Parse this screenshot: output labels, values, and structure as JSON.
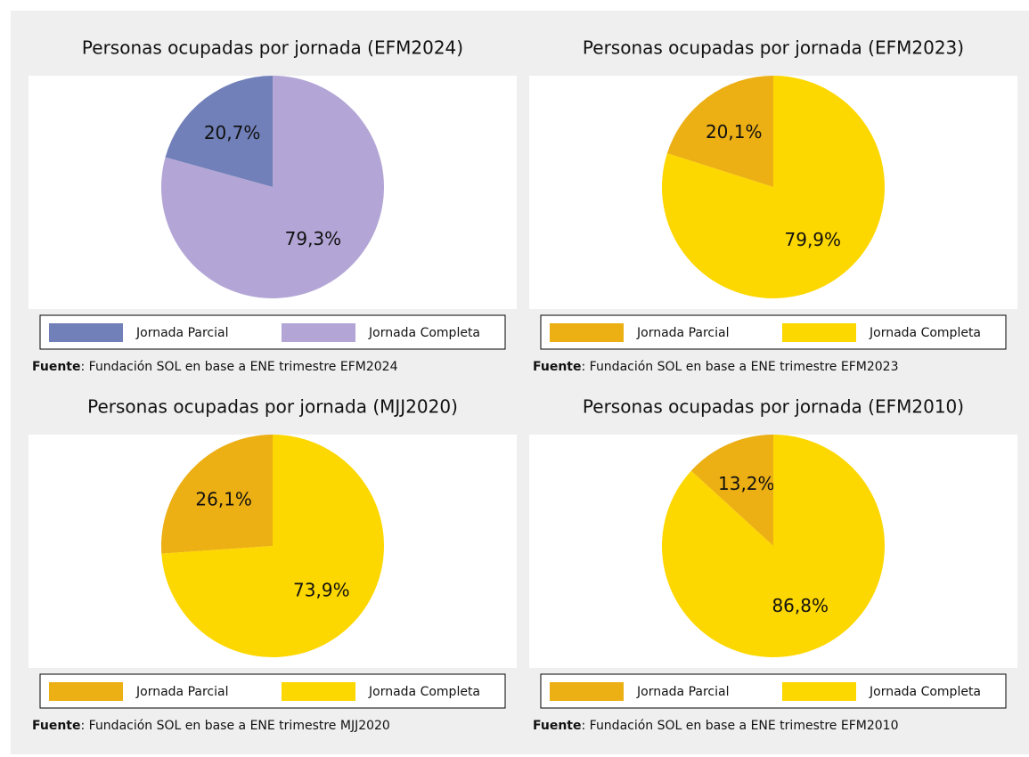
{
  "chart_data": [
    {
      "type": "pie",
      "title": "Personas ocupadas por jornada (EFM2024)",
      "categories": [
        "Jornada Parcial",
        "Jornada Completa"
      ],
      "values": [
        20.7,
        79.3
      ],
      "value_labels": [
        "20,7%",
        "79,3%"
      ],
      "colors": [
        "#7180b9",
        "#b3a6d6"
      ],
      "source_label": "Fuente",
      "source_text": ": Fundación SOL en base a ENE trimestre EFM2024"
    },
    {
      "type": "pie",
      "title": "Personas ocupadas por jornada (EFM2023)",
      "categories": [
        "Jornada Parcial",
        "Jornada Completa"
      ],
      "values": [
        20.1,
        79.9
      ],
      "value_labels": [
        "20,1%",
        "79,9%"
      ],
      "colors": [
        "#ecaf14",
        "#fdd700"
      ],
      "source_label": "Fuente",
      "source_text": ": Fundación SOL en base a ENE trimestre EFM2023"
    },
    {
      "type": "pie",
      "title": "Personas ocupadas por jornada (MJJ2020)",
      "categories": [
        "Jornada Parcial",
        "Jornada Completa"
      ],
      "values": [
        26.1,
        73.9
      ],
      "value_labels": [
        "26,1%",
        "73,9%"
      ],
      "colors": [
        "#ecaf14",
        "#fdd700"
      ],
      "source_label": "Fuente",
      "source_text": ": Fundación SOL en base a ENE trimestre MJJ2020"
    },
    {
      "type": "pie",
      "title": "Personas ocupadas por jornada (EFM2010)",
      "categories": [
        "Jornada Parcial",
        "Jornada Completa"
      ],
      "values": [
        13.2,
        86.8
      ],
      "value_labels": [
        "13,2%",
        "86,8%"
      ],
      "colors": [
        "#ecaf14",
        "#fdd700"
      ],
      "source_label": "Fuente",
      "source_text": ": Fundación SOL en base a ENE trimestre EFM2010"
    }
  ]
}
